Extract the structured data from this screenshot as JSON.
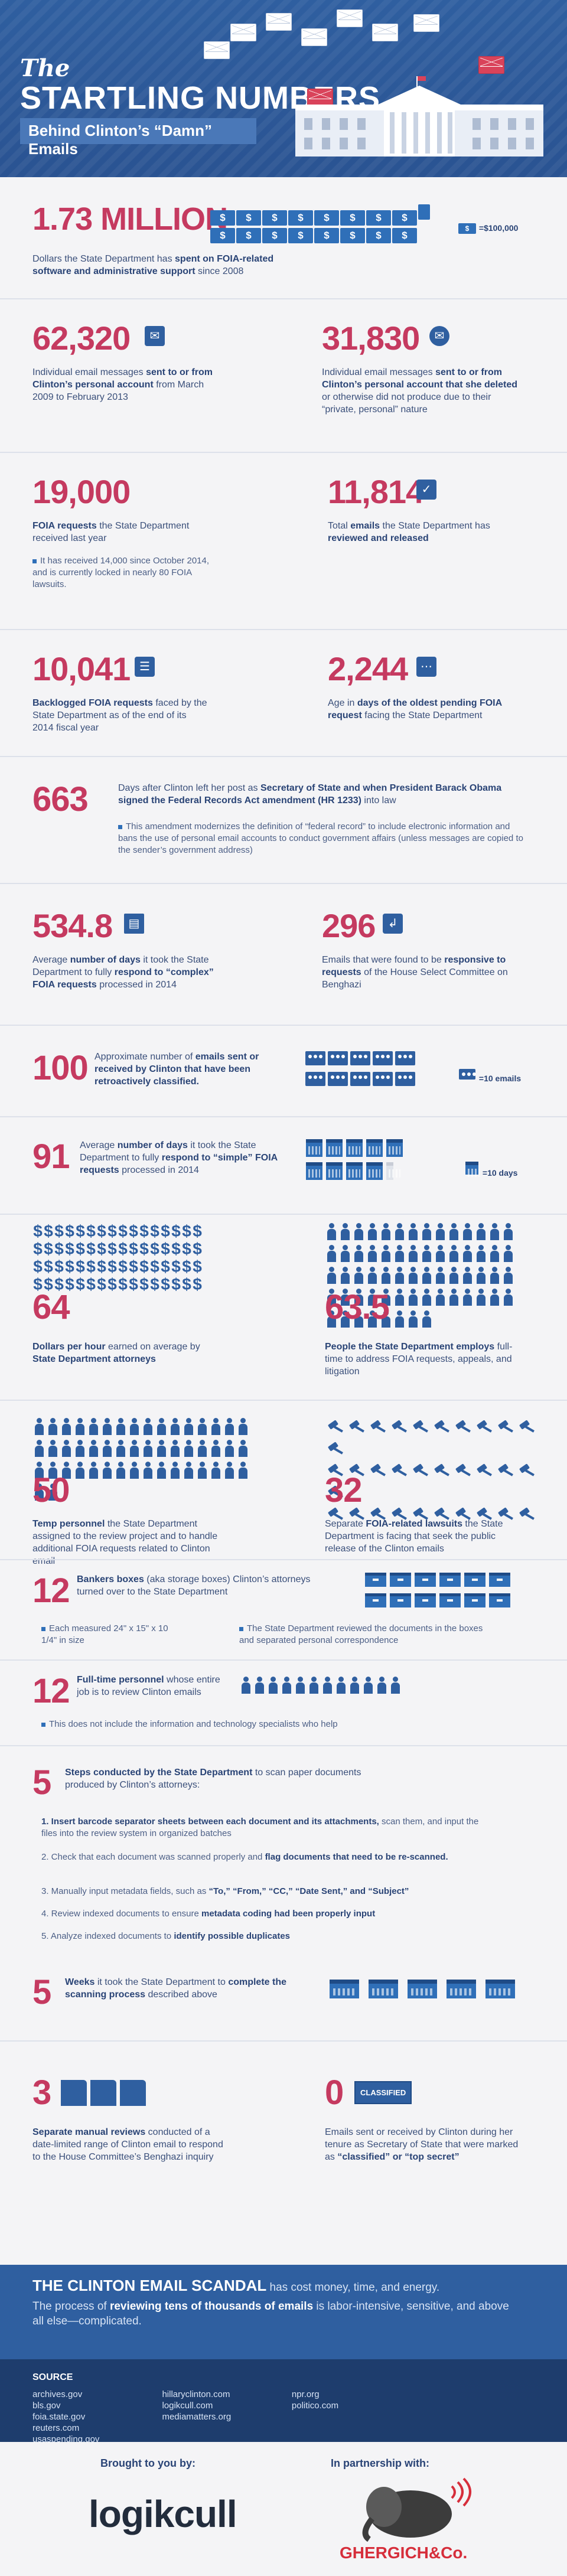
{
  "header": {
    "title_the": "The",
    "title_main": "STARTLING NUMBERS",
    "subtitle": "Behind Clinton’s “Damn” Emails"
  },
  "colors": {
    "navy": "#2f5fa0",
    "pink": "#c53a60",
    "dark": "#1e3d6d"
  },
  "s1": {
    "number": "1.73 MILLION",
    "text_pre": "Dollars the State Department has ",
    "text_bold": "spent on FOIA-related software and administrative support",
    "text_post": " since 2008",
    "legend": "=$100,000",
    "legend_icon": "$"
  },
  "s2": {
    "left_number": "62,320",
    "left_pre": "Individual email messages ",
    "left_bold": "sent to or from Clinton’s personal account",
    "left_post": " from March 2009 to February 2013",
    "right_number": "31,830",
    "right_pre": "Individual email messages ",
    "right_bold": "sent to or from Clinton’s personal account that she deleted",
    "right_post": " or otherwise did not produce due to their “private, personal” nature"
  },
  "s3": {
    "left_number": "19,000",
    "left_bold": "FOIA requests",
    "left_post": " the State Department received last year",
    "left_note": "It has received 14,000 since October 2014, and is currently locked in nearly 80 FOIA lawsuits.",
    "right_number": "11,814",
    "right_pre": "Total ",
    "right_bold": "emails",
    "right_mid": " the State Department has ",
    "right_bold2": "reviewed and released"
  },
  "s4": {
    "left_number": "10,041",
    "left_bold": "Backlogged FOIA requests",
    "left_post": " faced by the State Department as of the end of its 2014 fiscal year",
    "right_number": "2,244",
    "right_pre": "Age in ",
    "right_bold": "days of the oldest pending FOIA request",
    "right_post": " facing the State Department"
  },
  "s5": {
    "number": "663",
    "text_pre": "Days after Clinton left her post as ",
    "text_bold": "Secretary of State and when President Barack Obama signed the Federal Records Act amendment (HR 1233)",
    "text_post": " into law",
    "note": "This amendment modernizes the definition of “federal record” to include electronic information and bans the use of personal email accounts to conduct government affairs (unless messages are copied to the sender’s government address)"
  },
  "s6": {
    "left_number": "534.8",
    "left_pre": "Average ",
    "left_bold": "number of days",
    "left_mid": " it took the State Department to fully ",
    "left_bold2": "respond to “complex” FOIA requests",
    "left_post": " processed in 2014",
    "right_number": "296",
    "right_pre": "Emails that were found to be ",
    "right_bold": "responsive to requests",
    "right_post": " of the House Select Committee on Benghazi"
  },
  "s7": {
    "number": "100",
    "text_pre": "Approximate number of ",
    "text_bold": "emails sent or received by Clinton that have been retroactively classified.",
    "legend": "=10 emails"
  },
  "s8": {
    "number": "91",
    "text_pre": "Average ",
    "text_bold": "number of days",
    "text_mid": " it took the State Department to fully ",
    "text_bold2": "respond to “simple” FOIA requests",
    "text_post": " processed in 2014",
    "legend": "=10 days"
  },
  "s9": {
    "left_number": "64",
    "left_bold": "Dollars per hour",
    "left_mid": " earned on average by ",
    "left_bold2": "State Department attorneys",
    "right_number": "63.5",
    "right_bold": "People the State Department employs",
    "right_post": " full-time to address FOIA requests, appeals, and litigation"
  },
  "s10": {
    "left_number": "50",
    "left_bold": "Temp personnel",
    "left_post": " the State Department assigned to the review project and to handle additional FOIA requests related to Clinton email",
    "right_number": "32",
    "right_pre": "Separate ",
    "right_bold": "FOIA-related lawsuits",
    "right_post": " the State Department is facing that seek the public release of the Clinton emails"
  },
  "s11": {
    "number": "12",
    "text_bold": "Bankers boxes",
    "text_post": " (aka storage boxes) Clinton’s attorneys turned over to the State Department",
    "note1": "Each measured 24\" x 15\" x 10 1/4\" in size",
    "note2": "The State Department reviewed the documents in the boxes and separated personal correspondence"
  },
  "s12": {
    "number": "12",
    "text_bold": "Full-time personnel",
    "text_post": " whose entire job is to review Clinton emails",
    "note": "This does not include the information and technology specialists who help"
  },
  "s13": {
    "number": "5",
    "text_bold": "Steps conducted by the State Department",
    "text_post": " to scan paper documents produced by Clinton’s attorneys:",
    "step1_bold": "1. Insert barcode separator sheets between each document and its attachments,",
    "step1_post": " scan them, and input the files into the review system in organized batches",
    "step2_pre": "2. Check that each document was scanned properly and ",
    "step2_bold": "flag documents that need to be re-scanned.",
    "step3_pre": "3. Manually input metadata fields, such as ",
    "step3_bold": "“To,” “From,” “CC,” “Date Sent,” and “Subject”",
    "step4_pre": "4. Review indexed documents to ensure ",
    "step4_bold": "metadata coding had been properly input",
    "step5_pre": "5. Analyze indexed documents to ",
    "step5_bold": "identify possible duplicates"
  },
  "s14": {
    "number": "5",
    "text_bold": "Weeks",
    "text_mid": " it took the State Department to ",
    "text_bold2": "complete the scanning process",
    "text_post": " described above"
  },
  "s15": {
    "left_number": "3",
    "left_bold": "Separate manual reviews",
    "left_post": " conducted of a date-limited range of Clinton email to respond to the House Committee’s Benghazi inquiry",
    "right_number": "0",
    "right_badge": "CLASSIFIED",
    "right_pre": "Emails sent or received by Clinton during her tenure as Secretary of State that were marked as ",
    "right_bold": "“classified” or “top secret”"
  },
  "scandal": {
    "head": "THE CLINTON EMAIL SCANDAL",
    "head_post": " has cost money, time, and energy.",
    "body_pre": "The process of ",
    "body_bold": "reviewing tens of thousands of emails",
    "body_post": " is labor-intensive, sensitive, and above all else—complicated."
  },
  "source": {
    "label": "SOURCE",
    "col1": [
      "archives.gov",
      "bls.gov",
      "foia.state.gov"
    ],
    "col2": [
      "hillaryclinton.com",
      "logikcull.com",
      "mediamatters.org"
    ],
    "col3": [
      "npr.org",
      "politico.com"
    ],
    "col4": [
      "reuters.com",
      "usaspending.gov"
    ]
  },
  "bottom": {
    "brought": "Brought to you by:",
    "partner": "In partnership with:",
    "logo1": "logikcull",
    "logo2": "GHERGICH&Co."
  }
}
